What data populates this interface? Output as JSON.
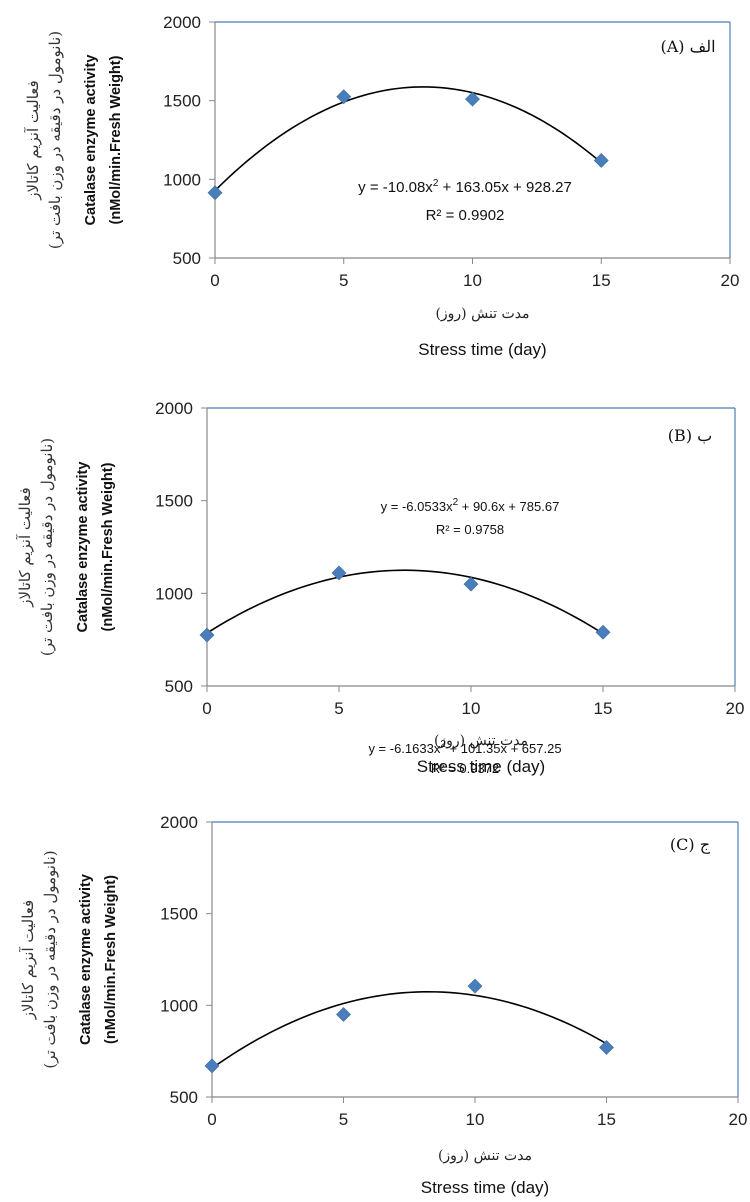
{
  "colors": {
    "marker": "#4a7ebb",
    "curve": "#000000",
    "frame": "#4a7ebb",
    "axis": "#888888"
  },
  "chart_data": [
    {
      "type": "scatter",
      "panel_label": "الف (A)",
      "x": [
        0,
        5,
        10,
        15
      ],
      "y": [
        915,
        1525,
        1510,
        1120
      ],
      "xlim": [
        0,
        20
      ],
      "ylim": [
        500,
        2000
      ],
      "xticks": [
        "0",
        "5",
        "10",
        "15",
        "20"
      ],
      "yticks": [
        "500",
        "1000",
        "1500",
        "2000"
      ],
      "ylabel_fa": "فعالیت آنزیم کاتالاز",
      "ylabel_fa_units": "(نانومول در دقیقه در وزن بافت تر)",
      "ylabel": "Catalase enzyme activity",
      "ylabel_units": "(nMol/min.Fresh Weight)",
      "xlabel_fa": "مدت تنش (روز)",
      "xlabel": "Stress time (day)",
      "trendline": {
        "type": "polynomial",
        "order": 2,
        "a": -10.08,
        "b": 163.05,
        "c": 928.27,
        "eq_prefix": "y = -10.08x",
        "eq_suffix": " + 163.05x + 928.27",
        "r2_label": "R² = 0.9902"
      }
    },
    {
      "type": "scatter",
      "panel_label": "ب (B)",
      "x": [
        0,
        5,
        10,
        15
      ],
      "y": [
        775,
        1110,
        1050,
        790
      ],
      "xlim": [
        0,
        20
      ],
      "ylim": [
        500,
        2000
      ],
      "xticks": [
        "0",
        "5",
        "10",
        "15",
        "20"
      ],
      "yticks": [
        "500",
        "1000",
        "1500",
        "2000"
      ],
      "ylabel_fa": "فعالیت آنزیم کاتالاز",
      "ylabel_fa_units": "(نانومول در دقیقه در وزن بافت تر)",
      "ylabel": "Catalase enzyme activity",
      "ylabel_units": "(nMol/min.Fresh Weight)",
      "xlabel_fa": "مدت تنش (روز)",
      "xlabel": "Stress time (day)",
      "trendline": {
        "type": "polynomial",
        "order": 2,
        "a": -6.0533,
        "b": 90.6,
        "c": 785.67,
        "eq_prefix": "y = -6.0533x",
        "eq_suffix": " + 90.6x + 785.67",
        "r2_label": "R² = 0.9758"
      }
    },
    {
      "type": "scatter",
      "panel_label": "ج (C)",
      "x": [
        0,
        5,
        10,
        15
      ],
      "y": [
        670,
        950,
        1105,
        770
      ],
      "xlim": [
        0,
        20
      ],
      "ylim": [
        500,
        2000
      ],
      "xticks": [
        "0",
        "5",
        "10",
        "15",
        "20"
      ],
      "yticks": [
        "500",
        "1000",
        "1500",
        "2000"
      ],
      "ylabel_fa": "فعالیت آنزیم کاتالاز",
      "ylabel_fa_units": "(نانومول در دقیقه در وزن بافت تر)",
      "ylabel": "Catalase enzyme activity",
      "ylabel_units": "(nMol/min.Fresh Weight)",
      "xlabel_fa": "مدت تنش (روز)",
      "xlabel": "Stress time (day)",
      "trendline": {
        "type": "polynomial",
        "order": 2,
        "a": -6.1633,
        "b": 101.35,
        "c": 657.25,
        "eq_prefix": "y = -6.1633x",
        "eq_suffix": " + 101.35x + 657.25",
        "r2_label": "R² = 0.9372"
      }
    }
  ]
}
